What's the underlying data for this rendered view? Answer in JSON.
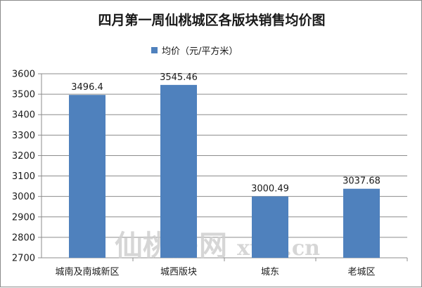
{
  "chart_data": {
    "type": "bar",
    "title": "四月第一周仙桃城区各版块销售均价图",
    "categories": [
      "城南及南城新区",
      "城西版块",
      "城东",
      "老城区"
    ],
    "series": [
      {
        "name": "均价（元/平方米）",
        "values": [
          3496.4,
          3545.46,
          3000.49,
          3037.68
        ],
        "labels": [
          "3496.4",
          "3545.46",
          "3000.49",
          "3037.68"
        ],
        "color": "#4f81bd"
      }
    ],
    "ylim": [
      2700,
      3600
    ],
    "yticks": [
      2700,
      2800,
      2900,
      3000,
      3100,
      3200,
      3300,
      3400,
      3500,
      3600
    ],
    "grid": true,
    "legend_position": "top",
    "xlabel": "",
    "ylabel": ""
  },
  "watermark": {
    "cn": "仙桃房网",
    "latin": "xtfw.cn"
  },
  "colors": {
    "bar": "#4f81bd",
    "grid": "#8c8c8c",
    "axis": "#8c8c8c"
  }
}
